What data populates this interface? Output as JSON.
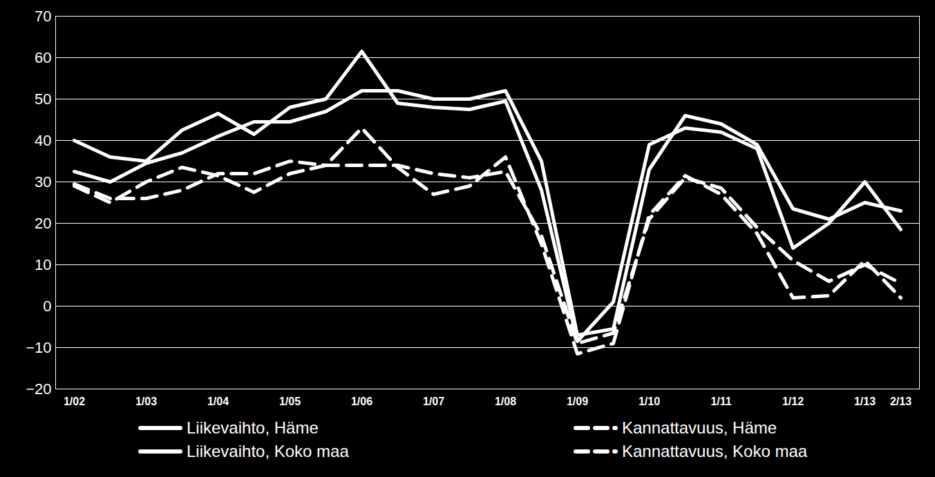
{
  "chart_data": {
    "type": "line",
    "categories": [
      "1/02",
      null,
      "1/03",
      null,
      "1/04",
      null,
      "1/05",
      null,
      "1/06",
      null,
      "1/07",
      null,
      "1/08",
      null,
      "1/09",
      null,
      "1/10",
      null,
      "1/11",
      null,
      "1/12",
      null,
      "1/13",
      "2/13"
    ],
    "series": [
      {
        "name": "Liikevaihto, Häme",
        "color": "#ffffff",
        "line_style": "solid",
        "values": [
          40,
          36,
          35,
          42.5,
          46.5,
          41.5,
          48,
          50,
          61.5,
          49,
          48,
          47.5,
          49.5,
          28,
          -8.5,
          1,
          39,
          43,
          42,
          38,
          14,
          20,
          30,
          18.5
        ]
      },
      {
        "name": "Kannattavuus, Häme",
        "color": "#ffffff",
        "line_style": "dashed",
        "values": [
          29,
          25,
          30,
          33.5,
          31.5,
          27.5,
          32,
          34,
          43,
          33.5,
          27,
          29,
          36,
          15,
          -11.5,
          -9,
          22,
          31.5,
          27,
          17.5,
          2,
          2.5,
          11,
          2
        ]
      },
      {
        "name": "Liikevaihto, Koko maa",
        "color": "#ffffff",
        "line_style": "solid",
        "values": [
          32.5,
          30,
          34.5,
          37,
          41,
          44.5,
          44.5,
          47,
          52,
          52,
          50,
          50,
          52,
          35,
          -7,
          -5.5,
          33,
          46,
          44,
          39,
          23.5,
          21,
          25,
          23
        ]
      },
      {
        "name": "Kannattavuus, Koko maa",
        "color": "#ffffff",
        "line_style": "dashed",
        "values": [
          29.5,
          26,
          26,
          28,
          32,
          32,
          35,
          34,
          34,
          34,
          32,
          31,
          32.5,
          17,
          -9,
          -6.5,
          21,
          31,
          28.5,
          19,
          11,
          6,
          10,
          5.5
        ]
      }
    ],
    "ylim": [
      -20,
      70
    ],
    "yticks": [
      -20,
      -10,
      0,
      10,
      20,
      30,
      40,
      50,
      60,
      70
    ],
    "grid": true,
    "legend": "bottom"
  }
}
